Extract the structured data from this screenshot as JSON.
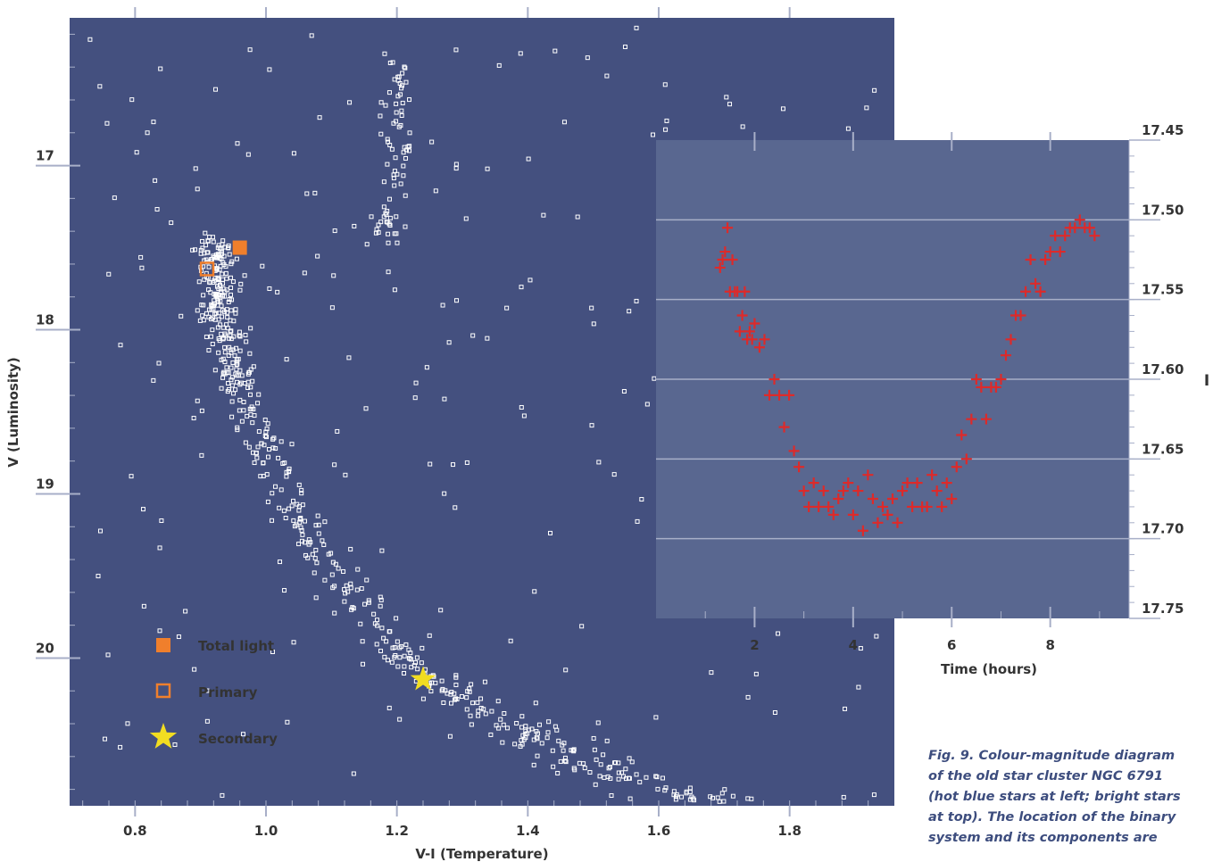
{
  "chart_data": [
    {
      "type": "scatter",
      "title": "",
      "xlabel": "V-I (Temperature)",
      "ylabel": "V (Luminosity)",
      "xlim": [
        0.7,
        1.96
      ],
      "ylim": [
        20.9,
        16.1
      ],
      "y_inverted": true,
      "x_ticks": [
        0.8,
        1.0,
        1.2,
        1.4,
        1.6,
        1.8
      ],
      "x_tick_labels": [
        "0.8",
        "1.0",
        "1.2",
        "1.4",
        "1.6",
        "1.8"
      ],
      "y_ticks": [
        17,
        18,
        19,
        20
      ],
      "y_tick_labels": [
        "17",
        "18",
        "19",
        "20"
      ],
      "background": "#44507f",
      "point_color": "#ffffff",
      "markers": [
        {
          "name": "Total light",
          "x": 0.96,
          "y": 17.5,
          "shape": "filled-square",
          "color": "#f07f2c"
        },
        {
          "name": "Primary",
          "x": 0.91,
          "y": 17.63,
          "shape": "open-square",
          "color": "#f07f2c"
        },
        {
          "name": "Secondary",
          "x": 1.24,
          "y": 20.13,
          "shape": "star",
          "color": "#f2dd21"
        }
      ],
      "legend": {
        "placement": "bottom-left",
        "items": [
          {
            "label": "Total light",
            "shape": "filled-square",
            "color": "#f07f2c"
          },
          {
            "label": "Primary",
            "shape": "open-square",
            "color": "#f07f2c"
          },
          {
            "label": "Secondary",
            "shape": "star",
            "color": "#f2dd21"
          }
        ]
      },
      "sequence": {
        "main_sequence_ridge": [
          [
            0.92,
            17.45
          ],
          [
            0.925,
            17.9
          ],
          [
            0.96,
            18.4
          ],
          [
            1.02,
            18.9
          ],
          [
            1.1,
            19.45
          ],
          [
            1.2,
            19.95
          ],
          [
            1.32,
            20.3
          ],
          [
            1.45,
            20.55
          ],
          [
            1.6,
            20.8
          ],
          [
            1.75,
            20.95
          ]
        ],
        "giant_branch": [
          [
            1.19,
            16.3
          ],
          [
            1.2,
            16.6
          ],
          [
            1.2,
            16.95
          ],
          [
            1.19,
            17.25
          ],
          [
            1.18,
            17.45
          ]
        ]
      }
    },
    {
      "type": "scatter",
      "title": "",
      "xlabel": "Time (hours)",
      "ylabel": "I",
      "xlim": [
        0,
        9.6
      ],
      "ylim": [
        17.45,
        17.75
      ],
      "y_inverted": true,
      "x_ticks": [
        2,
        4,
        6,
        8
      ],
      "x_tick_labels": [
        "2",
        "4",
        "6",
        "8"
      ],
      "y_ticks": [
        17.45,
        17.5,
        17.55,
        17.6,
        17.65,
        17.7,
        17.75
      ],
      "y_tick_labels": [
        "17.45",
        "17.50",
        "17.55",
        "17.60",
        "17.65",
        "17.70",
        "17.75"
      ],
      "grid": true,
      "background": "#596790",
      "point_color": "#dd2a2a",
      "marker": "plus",
      "x": [
        1.3,
        1.35,
        1.4,
        1.45,
        1.5,
        1.55,
        1.6,
        1.65,
        1.7,
        1.75,
        1.8,
        1.85,
        1.9,
        1.95,
        2.0,
        2.1,
        2.2,
        2.3,
        2.4,
        2.5,
        2.6,
        2.7,
        2.8,
        2.9,
        3.0,
        3.1,
        3.2,
        3.3,
        3.4,
        3.5,
        3.6,
        3.7,
        3.8,
        3.9,
        4.0,
        4.1,
        4.2,
        4.3,
        4.4,
        4.5,
        4.6,
        4.7,
        4.8,
        4.9,
        5.0,
        5.1,
        5.2,
        5.3,
        5.4,
        5.5,
        5.6,
        5.7,
        5.8,
        5.9,
        6.0,
        6.1,
        6.2,
        6.3,
        6.4,
        6.5,
        6.6,
        6.7,
        6.8,
        6.9,
        7.0,
        7.1,
        7.2,
        7.3,
        7.4,
        7.5,
        7.6,
        7.7,
        7.8,
        7.9,
        8.0,
        8.1,
        8.2,
        8.3,
        8.4,
        8.5,
        8.6,
        8.7,
        8.8,
        8.9
      ],
      "y": [
        17.53,
        17.525,
        17.52,
        17.505,
        17.545,
        17.525,
        17.545,
        17.545,
        17.57,
        17.56,
        17.545,
        17.575,
        17.57,
        17.575,
        17.565,
        17.58,
        17.575,
        17.61,
        17.6,
        17.61,
        17.63,
        17.61,
        17.645,
        17.655,
        17.67,
        17.68,
        17.665,
        17.68,
        17.67,
        17.68,
        17.685,
        17.675,
        17.67,
        17.665,
        17.685,
        17.67,
        17.695,
        17.66,
        17.675,
        17.69,
        17.68,
        17.685,
        17.675,
        17.69,
        17.67,
        17.665,
        17.68,
        17.665,
        17.68,
        17.68,
        17.66,
        17.67,
        17.68,
        17.665,
        17.675,
        17.655,
        17.635,
        17.65,
        17.625,
        17.6,
        17.605,
        17.625,
        17.605,
        17.605,
        17.6,
        17.585,
        17.575,
        17.56,
        17.56,
        17.545,
        17.525,
        17.54,
        17.545,
        17.525,
        17.52,
        17.51,
        17.52,
        17.51,
        17.505,
        17.505,
        17.5,
        17.505,
        17.505,
        17.51
      ]
    }
  ],
  "caption_lines": [
    "Fig. 9. Colour-magnitude diagram",
    "of the old star cluster NGC 6791",
    "(hot blue stars at left; bright stars",
    "at top). The location of the binary",
    "system and its components are"
  ],
  "colors": {
    "axis": "#a8afc8",
    "label_text": "#333333",
    "caption_text": "#3d4d7e"
  }
}
